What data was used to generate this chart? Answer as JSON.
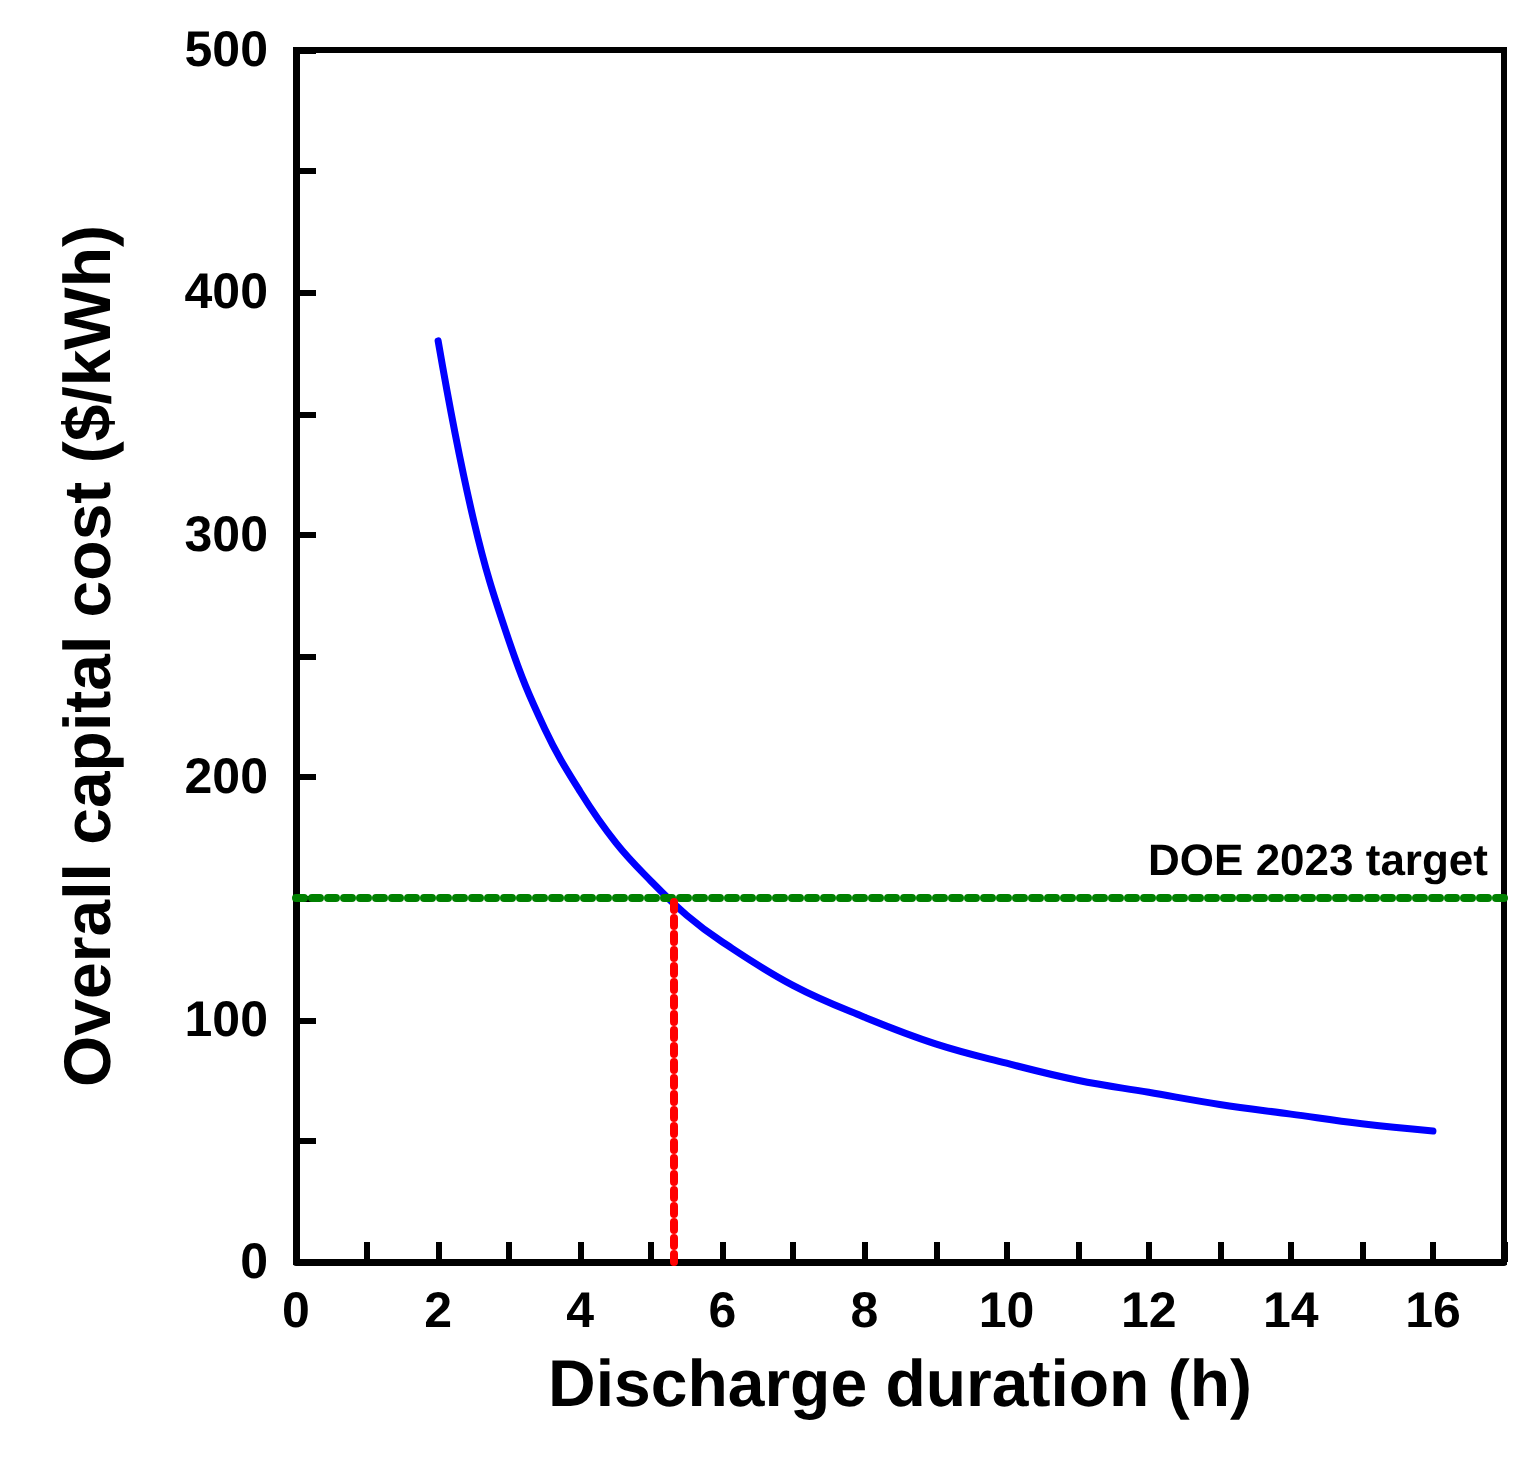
{
  "chart_data": {
    "type": "line",
    "xlabel": "Discharge duration (h)",
    "ylabel": "Overall capital cost ($/kWh)",
    "x": [
      2,
      2.5,
      3,
      3.5,
      4,
      4.5,
      5,
      5.5,
      6,
      7,
      8,
      9,
      10,
      11,
      12,
      13,
      14,
      15,
      16
    ],
    "series": [
      {
        "color": "#0000ff",
        "values": [
          380,
          306,
          256,
          220,
          194,
          173,
          157,
          143,
          132,
          114,
          101,
          90,
          82,
          75,
          70,
          65,
          61,
          57,
          54
        ]
      }
    ],
    "xlim": [
      0,
      17
    ],
    "xticks": [
      0,
      2,
      4,
      6,
      8,
      10,
      12,
      14,
      16
    ],
    "ylim": [
      0,
      500
    ],
    "yticks": [
      0,
      100,
      200,
      300,
      400,
      500
    ],
    "marker": "none",
    "line_style": "solid",
    "ref_lines": [
      {
        "axis": "y",
        "value": 150,
        "label": "DOE 2023 target",
        "color": "#008000",
        "line_style": "dotted"
      },
      {
        "axis": "x",
        "value": 5.3,
        "label": null,
        "color": "#ff0000",
        "line_style": "dotted"
      }
    ]
  }
}
